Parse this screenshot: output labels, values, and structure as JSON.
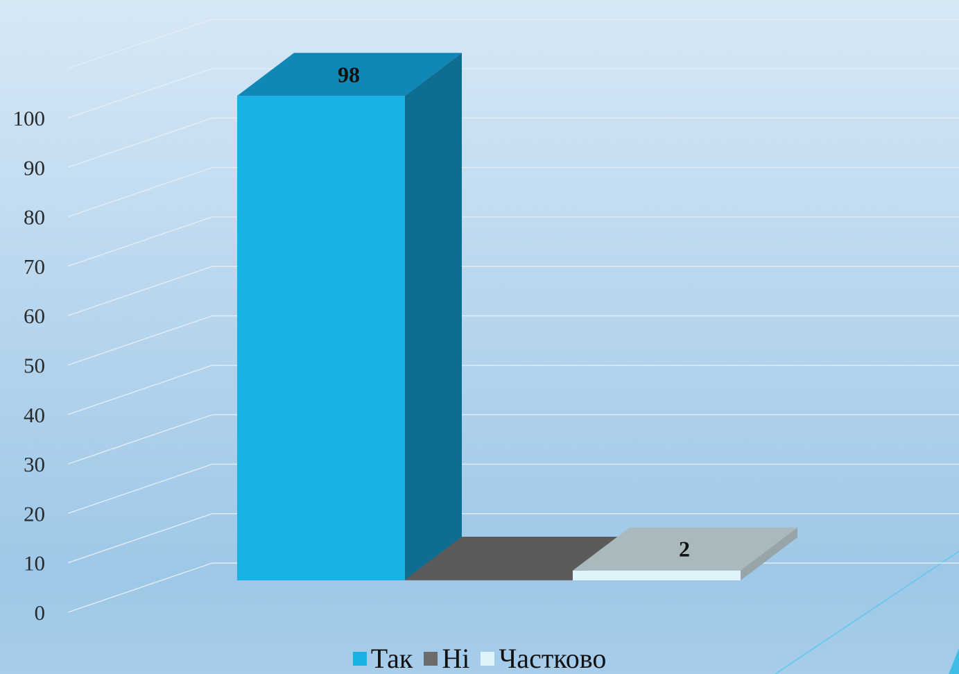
{
  "chart_data": {
    "type": "bar",
    "categories": [
      "Так",
      "Ні",
      "Частково"
    ],
    "values": [
      98,
      0,
      2
    ],
    "data_labels": [
      "98",
      "",
      "2"
    ],
    "series_colors": [
      "#18b1e4",
      "#6c6c6c",
      "#dff3fb"
    ],
    "ylim": [
      0,
      100
    ],
    "yticks": [
      "0",
      "10",
      "20",
      "30",
      "40",
      "50",
      "60",
      "70",
      "80",
      "90",
      "100"
    ],
    "grid": true,
    "legend_position": "bottom",
    "style": "3d-column"
  },
  "legend": {
    "items": [
      {
        "label": "Так",
        "color": "#18b1e4"
      },
      {
        "label": "Ні",
        "color": "#6c6c6c"
      },
      {
        "label": "Частково",
        "color": "#dff3fb"
      }
    ]
  }
}
